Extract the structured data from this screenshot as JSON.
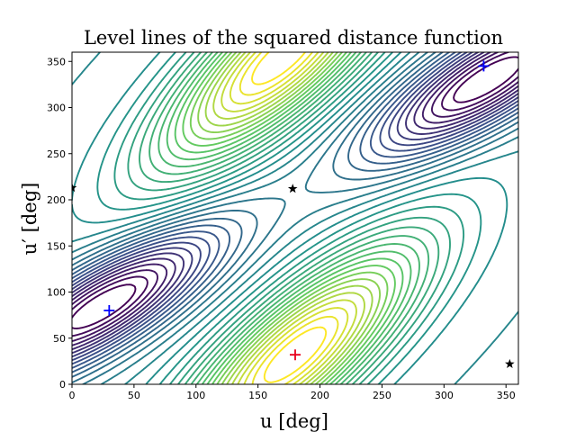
{
  "chart_data": {
    "type": "contour",
    "title": "Level lines of the squared distance function",
    "xlabel": "u [deg]",
    "ylabel": "u′ [deg]",
    "xlim": [
      0,
      360
    ],
    "ylim": [
      0,
      360
    ],
    "xticks": [
      0,
      50,
      100,
      150,
      200,
      250,
      300,
      350
    ],
    "yticks": [
      0,
      50,
      100,
      150,
      200,
      250,
      300,
      350
    ],
    "grid": false,
    "colormap": [
      "#440154",
      "#3b528b",
      "#21918c",
      "#5ec962",
      "#fde725"
    ],
    "contour_centers": {
      "maxima_lobes": [
        {
          "x": 180,
          "y": 32
        },
        {
          "x": 170,
          "y": 355
        }
      ],
      "minima_lobes": [
        {
          "x": 25,
          "y": 85
        },
        {
          "x": 335,
          "y": 330
        }
      ]
    },
    "markers": [
      {
        "x": 180,
        "y": 32,
        "symbol": "plus",
        "color": "#e8001c"
      },
      {
        "x": 30,
        "y": 80,
        "symbol": "plus",
        "color": "#0000ff"
      },
      {
        "x": 332,
        "y": 345,
        "symbol": "plus",
        "color": "#0000ff"
      },
      {
        "x": 0,
        "y": 213,
        "symbol": "star",
        "color": "#000000"
      },
      {
        "x": 178,
        "y": 212,
        "symbol": "star",
        "color": "#000000"
      },
      {
        "x": 353,
        "y": 22,
        "symbol": "star",
        "color": "#000000"
      }
    ]
  }
}
